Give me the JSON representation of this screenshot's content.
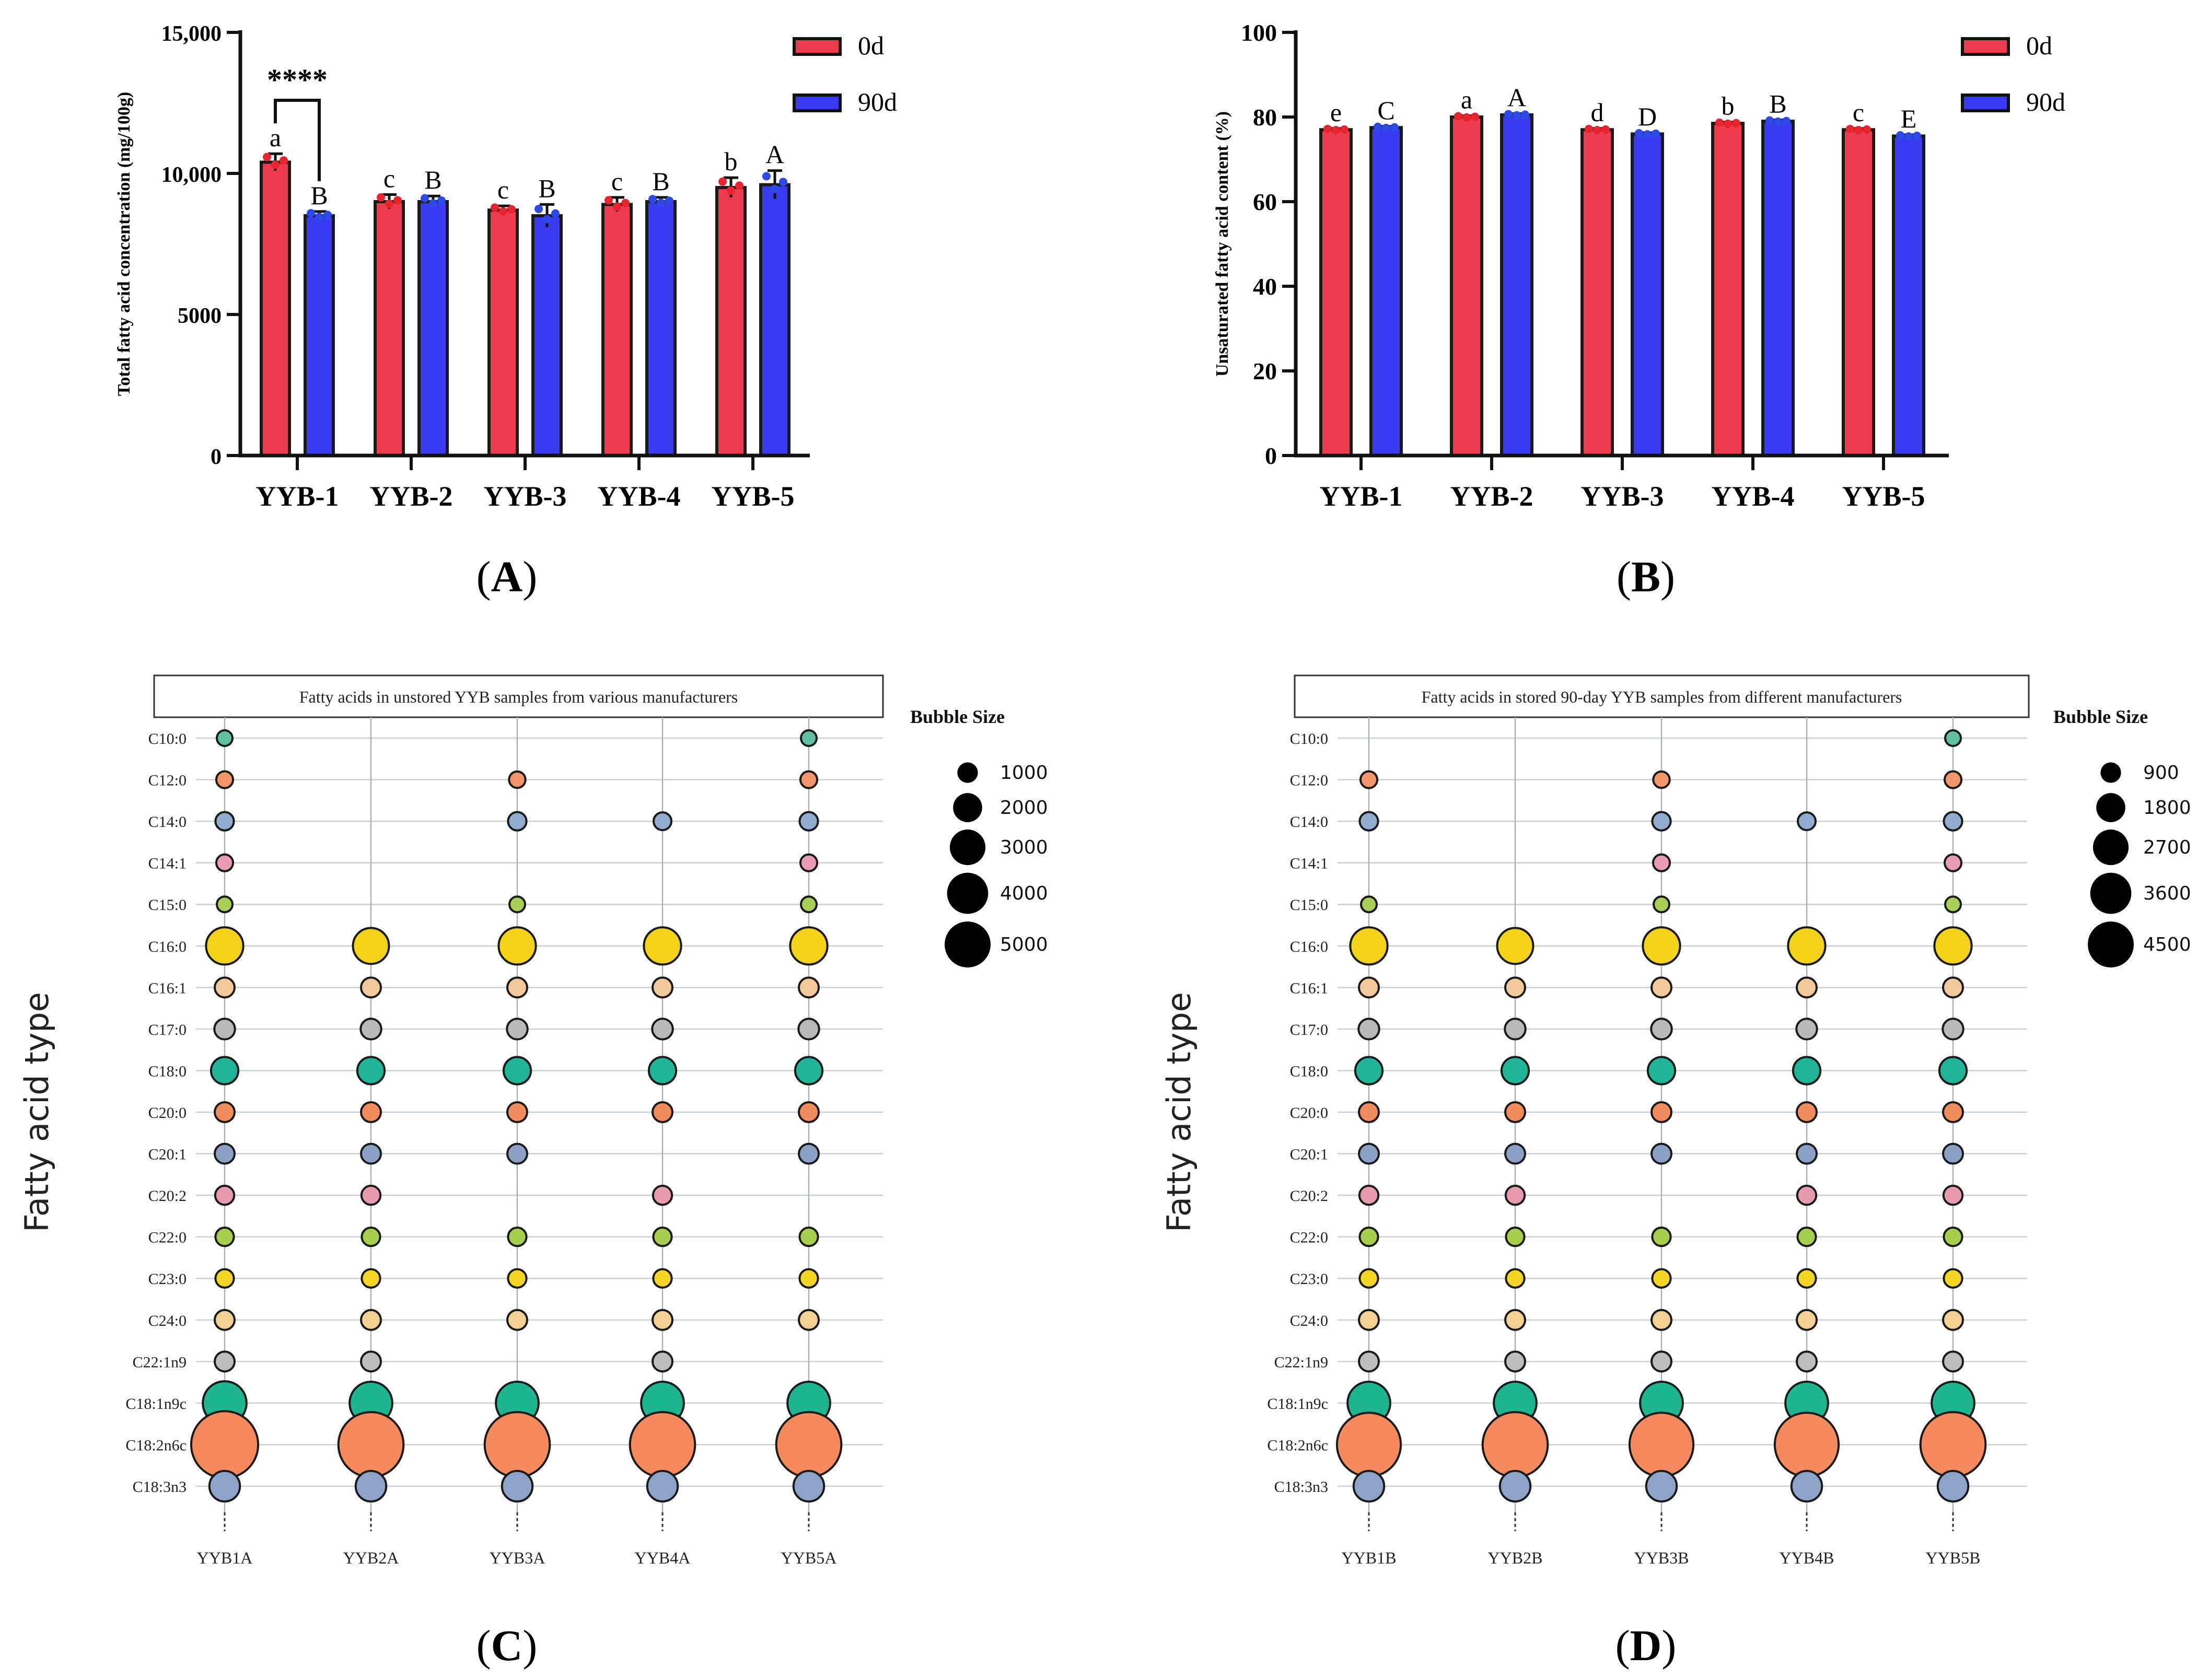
{
  "colors": {
    "red": "#ee3b4e",
    "blue": "#3a3aee",
    "dot_red": "#e8252f",
    "dot_blue": "#2d4ae8",
    "axis": "#111111",
    "grid": "#9aa8b0",
    "bubble_palette": [
      "#5fbfa0",
      "#f2956a",
      "#93abcf",
      "#e99db3",
      "#a9cf57",
      "#f4d21a",
      "#f3c99c",
      "#b9b9b9",
      "#20b597",
      "#f28c5d",
      "#8aa0c4",
      "#e79aaa",
      "#a5cf4c",
      "#f5d625",
      "#f3d195",
      "#bdbdbd",
      "#1db690",
      "#f58a5c",
      "#8da3c9"
    ]
  },
  "panels": {
    "a": {
      "label": "(A)",
      "letter": "A"
    },
    "b": {
      "label": "(B)",
      "letter": "B"
    },
    "c": {
      "label": "(C)",
      "letter": "C"
    },
    "d": {
      "label": "(D)",
      "letter": "D"
    }
  },
  "chart_data": [
    {
      "id": "A",
      "type": "bar",
      "title": "",
      "ylabel": "Total fatty acid concentration (mg/100g)",
      "xlabel": "",
      "categories": [
        "YYB-1",
        "YYB-2",
        "YYB-3",
        "YYB-4",
        "YYB-5"
      ],
      "ylim": [
        0,
        15000
      ],
      "yticks": [
        0,
        5000,
        10000,
        15000
      ],
      "ytick_labels": [
        "0",
        "5000",
        "10,000",
        "15,000"
      ],
      "series": [
        {
          "name": "0d",
          "values": [
            10400,
            9000,
            8700,
            8900,
            9500
          ],
          "errors": [
            300,
            250,
            150,
            250,
            350
          ],
          "letters": [
            "a",
            "c",
            "c",
            "c",
            "b"
          ]
        },
        {
          "name": "90d",
          "values": [
            8500,
            9000,
            8500,
            9000,
            9600
          ],
          "errors": [
            150,
            200,
            400,
            150,
            500
          ],
          "letters": [
            "B",
            "B",
            "B",
            "B",
            "A"
          ]
        }
      ],
      "legend": [
        "0d",
        "90d"
      ],
      "legend_position": "top-right",
      "annotation": "****"
    },
    {
      "id": "B",
      "type": "bar",
      "title": "",
      "ylabel": "Unsaturated fatty acid content (%)",
      "xlabel": "",
      "categories": [
        "YYB-1",
        "YYB-2",
        "YYB-3",
        "YYB-4",
        "YYB-5"
      ],
      "ylim": [
        0,
        100
      ],
      "yticks": [
        0,
        20,
        40,
        60,
        80,
        100
      ],
      "ytick_labels": [
        "0",
        "20",
        "40",
        "60",
        "80",
        "100"
      ],
      "series": [
        {
          "name": "0d",
          "values": [
            77,
            80,
            77,
            78.5,
            77
          ],
          "errors": [
            0.3,
            0.3,
            0.3,
            0.3,
            0.3
          ],
          "letters": [
            "e",
            "a",
            "d",
            "b",
            "c"
          ]
        },
        {
          "name": "90d",
          "values": [
            77.5,
            80.5,
            76,
            79,
            75.5
          ],
          "errors": [
            0.3,
            0.3,
            0.3,
            0.3,
            0.3
          ],
          "letters": [
            "C",
            "A",
            "D",
            "B",
            "E"
          ]
        }
      ],
      "legend": [
        "0d",
        "90d"
      ],
      "legend_position": "top-right"
    },
    {
      "id": "C",
      "type": "scatter",
      "subtype": "bubble",
      "title": "Fatty acids in unstored YYB samples from various manufacturers",
      "ylabel": "Fatty acid type",
      "xlabel": "",
      "categories": [
        "YYB1A",
        "YYB2A",
        "YYB3A",
        "YYB4A",
        "YYB5A"
      ],
      "fatty_acids": [
        "C10:0",
        "C12:0",
        "C14:0",
        "C14:1",
        "C15:0",
        "C16:0",
        "C16:1",
        "C17:0",
        "C18:0",
        "C20:0",
        "C20:1",
        "C20:2",
        "C22:0",
        "C23:0",
        "C24:0",
        "C22:1n9",
        "C18:1n9c",
        "C18:2n6c",
        "C18:3n3"
      ],
      "values": [
        [
          120,
          0,
          0,
          0,
          120
        ],
        [
          150,
          0,
          140,
          0,
          150
        ],
        [
          200,
          0,
          200,
          180,
          200
        ],
        [
          150,
          0,
          0,
          0,
          150
        ],
        [
          120,
          0,
          120,
          0,
          120
        ],
        [
          1300,
          1200,
          1300,
          1300,
          1300
        ],
        [
          250,
          250,
          250,
          250,
          250
        ],
        [
          280,
          280,
          280,
          280,
          280
        ],
        [
          600,
          600,
          600,
          600,
          600
        ],
        [
          250,
          250,
          250,
          250,
          250
        ],
        [
          250,
          250,
          250,
          0,
          250
        ],
        [
          220,
          220,
          0,
          220,
          0
        ],
        [
          200,
          200,
          200,
          200,
          200
        ],
        [
          200,
          200,
          200,
          200,
          200
        ],
        [
          250,
          250,
          250,
          250,
          250
        ],
        [
          250,
          250,
          0,
          250,
          0
        ],
        [
          1900,
          1800,
          1800,
          1800,
          1800
        ],
        [
          5000,
          4700,
          4700,
          4700,
          4700
        ],
        [
          800,
          800,
          800,
          800,
          800
        ]
      ],
      "bubble_legend_title": "Bubble Size",
      "bubble_legend": [
        "1000",
        "2000",
        "3000",
        "4000",
        "5000"
      ],
      "bubble_legend_values": [
        1000,
        2000,
        3000,
        4000,
        5000
      ],
      "legend_position": "right"
    },
    {
      "id": "D",
      "type": "scatter",
      "subtype": "bubble",
      "title": "Fatty acids in stored 90-day YYB samples from different manufacturers",
      "ylabel": "Fatty acid type",
      "xlabel": "",
      "categories": [
        "YYB1B",
        "YYB2B",
        "YYB3B",
        "YYB4B",
        "YYB5B"
      ],
      "fatty_acids": [
        "C10:0",
        "C12:0",
        "C14:0",
        "C14:1",
        "C15:0",
        "C16:0",
        "C16:1",
        "C17:0",
        "C18:0",
        "C20:0",
        "C20:1",
        "C20:2",
        "C22:0",
        "C23:0",
        "C24:0",
        "C22:1n9",
        "C18:1n9c",
        "C18:2n6c",
        "C18:3n3"
      ],
      "values": [
        [
          0,
          0,
          0,
          0,
          120
        ],
        [
          150,
          0,
          140,
          0,
          150
        ],
        [
          200,
          0,
          200,
          180,
          200
        ],
        [
          0,
          0,
          150,
          0,
          150
        ],
        [
          120,
          0,
          120,
          0,
          120
        ],
        [
          1300,
          1200,
          1300,
          1300,
          1300
        ],
        [
          250,
          250,
          250,
          250,
          250
        ],
        [
          280,
          280,
          280,
          280,
          280
        ],
        [
          600,
          600,
          600,
          600,
          600
        ],
        [
          250,
          250,
          250,
          250,
          250
        ],
        [
          250,
          250,
          250,
          250,
          250
        ],
        [
          220,
          220,
          0,
          220,
          220
        ],
        [
          200,
          200,
          200,
          200,
          200
        ],
        [
          200,
          200,
          200,
          200,
          200
        ],
        [
          250,
          250,
          250,
          250,
          250
        ],
        [
          250,
          250,
          250,
          250,
          250
        ],
        [
          1800,
          1800,
          1800,
          1800,
          1800
        ],
        [
          4500,
          4700,
          4500,
          4500,
          4700
        ],
        [
          800,
          800,
          800,
          800,
          800
        ]
      ],
      "bubble_legend_title": "Bubble Size",
      "bubble_legend": [
        "900",
        "1800",
        "2700",
        "3600",
        "4500"
      ],
      "bubble_legend_values": [
        900,
        1800,
        2700,
        3600,
        4500
      ],
      "legend_position": "right"
    }
  ]
}
